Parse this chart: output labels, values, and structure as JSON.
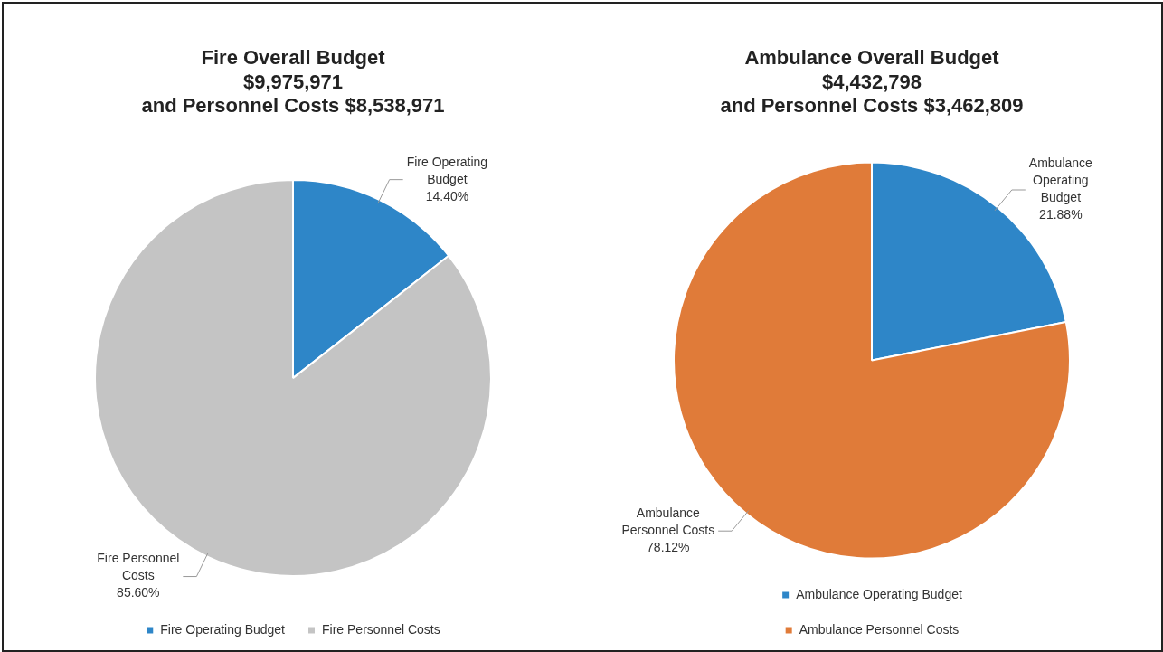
{
  "chart_data": [
    {
      "type": "pie",
      "title": "Fire Overall Budget\n$9,975,971\nand Personnel Costs $8,538,971",
      "categories": [
        "Fire Operating Budget",
        "Fire Personnel Costs"
      ],
      "values": [
        14.4,
        85.6
      ],
      "colors": [
        "#2e86c8",
        "#c4c4c4"
      ],
      "value_labels": [
        "14.40%",
        "85.60%"
      ],
      "legend": "bottom"
    },
    {
      "type": "pie",
      "title": "Ambulance Overall Budget\n$4,432,798\nand Personnel Costs $3,462,809",
      "categories": [
        "Ambulance Operating Budget",
        "Ambulance Personnel Costs"
      ],
      "values": [
        21.88,
        78.12
      ],
      "colors": [
        "#2e86c8",
        "#e07b39"
      ],
      "value_labels": [
        "21.88%",
        "78.12%"
      ],
      "legend": "bottom"
    }
  ]
}
